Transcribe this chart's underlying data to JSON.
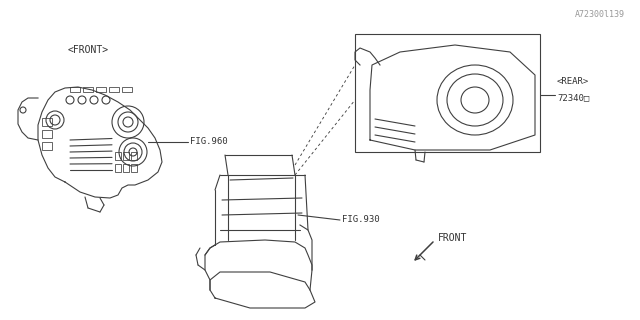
{
  "bg_color": "#ffffff",
  "line_color": "#404040",
  "label_color": "#333333",
  "watermark": "A72300l139",
  "lw": 0.8,
  "labels": {
    "fig930": "FIG.930",
    "fig860": "FIG.960",
    "part_num": "72340□",
    "front_arrow_label": "FRONT",
    "front_tag": "<FRONT>",
    "rear_tag": "<REAR>"
  }
}
